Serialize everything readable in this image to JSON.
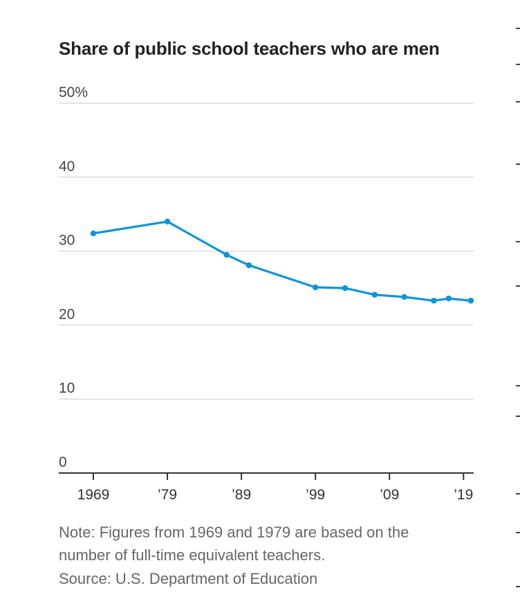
{
  "chart_data": {
    "type": "line",
    "title": "Share of public school teachers who are men",
    "x_tick_labels": [
      "1969",
      "’79",
      "’89",
      "’99",
      "’09",
      "’19"
    ],
    "y_tick_labels": [
      "0",
      "10",
      "20",
      "30",
      "40",
      "50%"
    ],
    "y_ticks": [
      0,
      10,
      20,
      30,
      40,
      50
    ],
    "x_ticks": [
      1969,
      1979,
      1989,
      1999,
      2009,
      2019
    ],
    "xlim": [
      1969,
      2020
    ],
    "ylim": [
      0,
      50
    ],
    "grid": true,
    "color": "#0b94d8",
    "series": [
      {
        "x": [
          1969,
          1979,
          1987,
          1990,
          1999,
          2003,
          2007,
          2011,
          2015,
          2017,
          2020
        ],
        "y": [
          32.4,
          34.0,
          29.5,
          28.1,
          25.1,
          25.0,
          24.1,
          23.8,
          23.3,
          23.6,
          23.3
        ]
      }
    ],
    "note_line1": "Note: Figures from 1969 and 1979 are based on the",
    "note_line2": "number of full-time equivalent teachers.",
    "source": "Source: U.S. Department of Education"
  }
}
